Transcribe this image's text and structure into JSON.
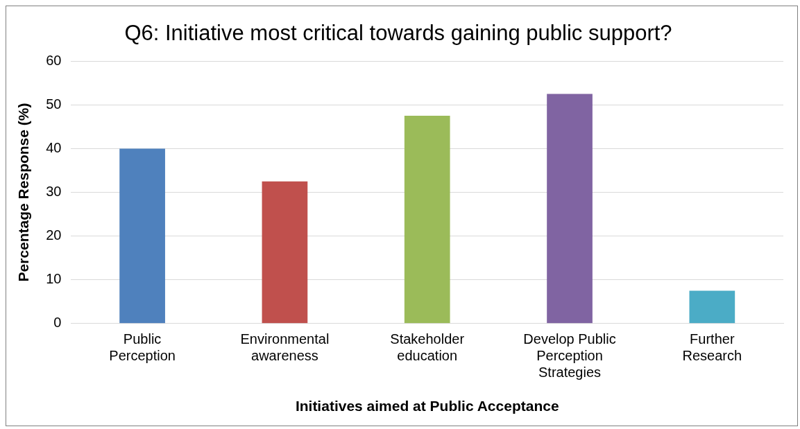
{
  "chart_data": {
    "type": "bar",
    "title": "Q6: Initiative most critical towards gaining public support?",
    "xlabel": "Initiatives aimed at Public Acceptance",
    "ylabel": "Percentage Response (%)",
    "categories": [
      "Public Perception",
      "Environmental awareness",
      "Stakeholder education",
      "Develop Public Perception Strategies",
      "Further Research"
    ],
    "values": [
      40,
      32.5,
      47.5,
      52.5,
      7.5
    ],
    "colors": [
      "#4f81bd",
      "#c0504d",
      "#9bbb59",
      "#8064a2",
      "#4bacc6"
    ],
    "ylim": [
      0,
      60
    ],
    "yticks": [
      0,
      10,
      20,
      30,
      40,
      50,
      60
    ],
    "grid": "y",
    "legend": false
  }
}
